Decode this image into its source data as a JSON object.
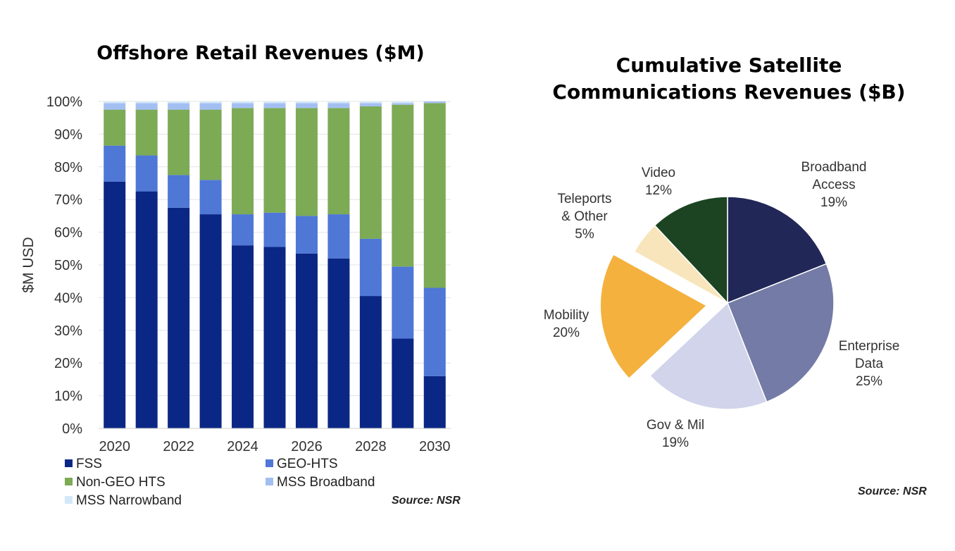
{
  "left_chart": {
    "source": "Source: NSR"
  },
  "right_chart": {
    "source": "Source: NSR"
  },
  "chart_data": [
    {
      "type": "bar",
      "stacked": true,
      "title": "Offshore Retail Revenues ($M)",
      "ylabel": "$M USD",
      "xlabel": "",
      "ylim": [
        0,
        100
      ],
      "y_ticks": [
        "0%",
        "10%",
        "20%",
        "30%",
        "40%",
        "50%",
        "60%",
        "70%",
        "80%",
        "90%",
        "100%"
      ],
      "categories": [
        "2020",
        "2021",
        "2022",
        "2023",
        "2024",
        "2025",
        "2026",
        "2027",
        "2028",
        "2029",
        "2030"
      ],
      "x_tick_labels": [
        "2020",
        "2022",
        "2024",
        "2026",
        "2028",
        "2030"
      ],
      "grid": true,
      "legend_position": "bottom",
      "series": [
        {
          "name": "FSS",
          "color": "#0a2785",
          "values": [
            75.5,
            72.5,
            67.5,
            65.5,
            56,
            55.5,
            53.5,
            52,
            40.5,
            27.5,
            16
          ]
        },
        {
          "name": "GEO-HTS",
          "color": "#4f77d6",
          "values": [
            11,
            11,
            10,
            10.5,
            9.5,
            10.5,
            11.5,
            13.5,
            17.5,
            22,
            27
          ]
        },
        {
          "name": "Non-GEO HTS",
          "color": "#7caa55",
          "values": [
            11,
            14,
            20,
            21.5,
            32.5,
            32,
            33,
            32.5,
            40.5,
            49.5,
            56.5
          ]
        },
        {
          "name": "MSS Broadband",
          "color": "#a3bff2",
          "values": [
            2,
            2,
            2,
            2,
            1.5,
            1.5,
            1.5,
            1.5,
            1,
            0.5,
            0.5
          ]
        },
        {
          "name": "MSS Narrowband",
          "color": "#d3e8f8",
          "values": [
            0.5,
            0.5,
            0.5,
            0.5,
            0.5,
            0.5,
            0.5,
            0.5,
            0.5,
            0.5,
            0
          ]
        }
      ]
    },
    {
      "type": "pie",
      "title_lines": [
        "Cumulative Satellite",
        "Communications Revenues ($B)"
      ],
      "slices": [
        {
          "name_lines": [
            "Broadband",
            "Access"
          ],
          "pct_label": "19%",
          "value": 19,
          "color": "#212757",
          "exploded": false
        },
        {
          "name_lines": [
            "Enterprise",
            "Data"
          ],
          "pct_label": "25%",
          "value": 25,
          "color": "#737ba6",
          "exploded": false
        },
        {
          "name_lines": [
            "Gov & Mil"
          ],
          "pct_label": "19%",
          "value": 19,
          "color": "#d1d4ea",
          "exploded": false
        },
        {
          "name_lines": [
            "Mobility"
          ],
          "pct_label": "20%",
          "value": 20,
          "color": "#f4b13e",
          "exploded": true
        },
        {
          "name_lines": [
            "Teleports",
            "& Other"
          ],
          "pct_label": "5%",
          "value": 5,
          "color": "#f8e5bb",
          "exploded": false
        },
        {
          "name_lines": [
            "Video"
          ],
          "pct_label": "12%",
          "value": 12,
          "color": "#1c4422",
          "exploded": false
        }
      ]
    }
  ]
}
